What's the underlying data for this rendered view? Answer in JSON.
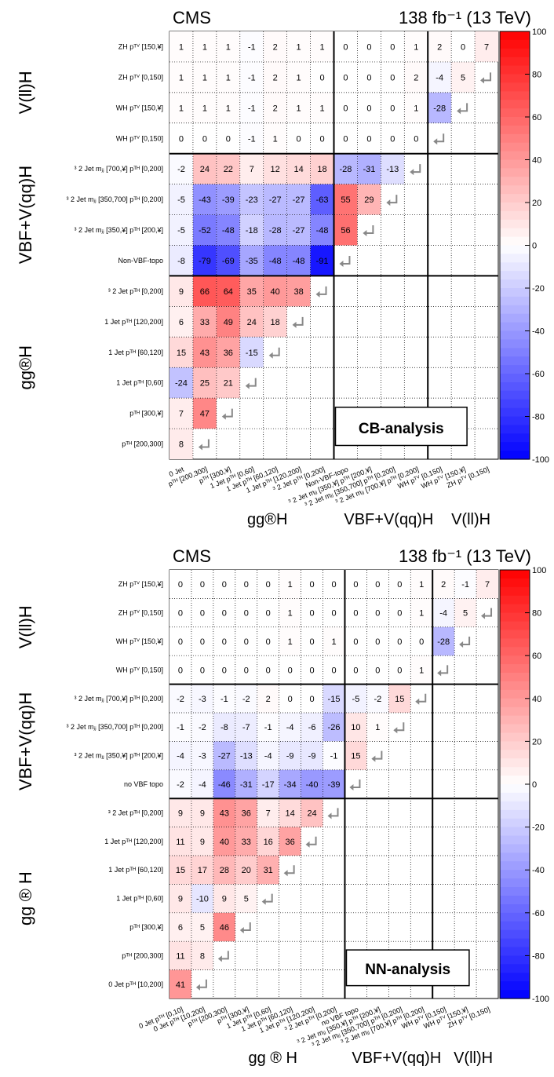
{
  "colorbar": {
    "ticks": [
      "100",
      "80",
      "60",
      "40",
      "20",
      "0",
      "-20",
      "-40",
      "-60",
      "-80",
      "-100"
    ],
    "max_color": "#ff0000",
    "mid_color": "#ffffff",
    "min_color": "#0000ff"
  },
  "chart_data": [
    {
      "type": "heatmap",
      "title_left": "CMS",
      "title_right": "138 fb⁻¹ (13 TeV)",
      "box_label": "CB-analysis",
      "x_labels": [
        "0 Jet",
        "pᵀᴴ [200,300]",
        "pᵀᴴ [300,¥]",
        "1 Jet pᵀᴴ [0,60]",
        "1 Jet pᵀᴴ [60,120]",
        "1 Jet pᵀᴴ [120,200]",
        "³ 2 Jet pᵀᴴ [0,200]",
        "Non-VBF-topo",
        "³ 2 Jet mⱼⱼ [350,¥] pᵀᴴ [200,¥]",
        "³ 2 Jet mⱼⱼ [350,700] pᵀᴴ [0,200]",
        "³ 2 Jet mⱼⱼ [700,¥] pᵀᴴ [0,200]",
        "WH pᵀⱽ [0,150]",
        "WH pᵀⱽ [150,¥]",
        "ZH pᵀⱽ [0,150]"
      ],
      "y_labels": [
        "ZH pᵀⱽ [150,¥]",
        "ZH pᵀⱽ [0,150]",
        "WH pᵀⱽ [150,¥]",
        "WH pᵀⱽ [0,150]",
        "³ 2 Jet mⱼⱼ [700,¥] pᵀᴴ [0,200]",
        "³ 2 Jet mⱼⱼ [350,700] pᵀᴴ [0,200]",
        "³ 2 Jet mⱼⱼ [350,¥] pᵀᴴ [200,¥]",
        "Non-VBF-topo",
        "³ 2 Jet pᵀᴴ [0,200]",
        "1 Jet pᵀᴴ [120,200]",
        "1 Jet pᵀᴴ [60,120]",
        "1 Jet pᵀᴴ [0,60]",
        "pᵀᴴ [300,¥]",
        "pᵀᴴ [200,300]"
      ],
      "y_groups": [
        "V(ll)H",
        "VBF+V(qq)H",
        "gg®H"
      ],
      "x_groups": [
        "gg®H",
        "VBF+V(qq)H",
        "V(ll)H"
      ],
      "values": [
        [
          1,
          1,
          1,
          -1,
          2,
          1,
          1,
          0,
          0,
          0,
          1,
          2,
          0,
          7
        ],
        [
          1,
          1,
          1,
          -1,
          2,
          1,
          0,
          0,
          0,
          0,
          2,
          -4,
          5,
          null
        ],
        [
          1,
          1,
          1,
          -1,
          2,
          1,
          1,
          0,
          0,
          0,
          1,
          -28,
          null,
          null
        ],
        [
          0,
          0,
          0,
          -1,
          1,
          0,
          0,
          0,
          0,
          0,
          0,
          null,
          null,
          null
        ],
        [
          -2,
          24,
          22,
          7,
          12,
          14,
          18,
          -28,
          -31,
          -13,
          null,
          null,
          null,
          null
        ],
        [
          -5,
          -43,
          -39,
          -23,
          -27,
          -27,
          -63,
          55,
          29,
          null,
          null,
          null,
          null,
          null
        ],
        [
          -5,
          -52,
          -48,
          -18,
          -28,
          -27,
          -48,
          56,
          null,
          null,
          null,
          null,
          null,
          null
        ],
        [
          -8,
          -79,
          -69,
          -35,
          -48,
          -48,
          -91,
          null,
          null,
          null,
          null,
          null,
          null,
          null
        ],
        [
          9,
          66,
          64,
          35,
          40,
          38,
          null,
          null,
          null,
          null,
          null,
          null,
          null,
          null
        ],
        [
          6,
          33,
          49,
          24,
          18,
          null,
          null,
          null,
          null,
          null,
          null,
          null,
          null,
          null
        ],
        [
          15,
          43,
          36,
          -15,
          null,
          null,
          null,
          null,
          null,
          null,
          null,
          null,
          null,
          null
        ],
        [
          -24,
          25,
          21,
          null,
          null,
          null,
          null,
          null,
          null,
          null,
          null,
          null,
          null,
          null
        ],
        [
          7,
          47,
          null,
          null,
          null,
          null,
          null,
          null,
          null,
          null,
          null,
          null,
          null,
          null
        ],
        [
          8,
          null,
          null,
          null,
          null,
          null,
          null,
          null,
          null,
          null,
          null,
          null,
          null,
          null
        ]
      ],
      "zlim": [
        -100,
        100
      ]
    },
    {
      "type": "heatmap",
      "title_left": "CMS",
      "title_right": "138 fb⁻¹ (13 TeV)",
      "box_label": "NN-analysis",
      "x_labels": [
        "0 Jet pᵀᴴ [0,10]",
        "0 Jet pᵀᴴ [10,200]",
        "pᵀᴴ [200,300]",
        "pᵀᴴ [300,¥]",
        "1 Jet pᵀᴴ [0,60]",
        "1 Jet pᵀᴴ [60,120]",
        "1 Jet pᵀᴴ [120,200]",
        "³ 2 Jet pᵀᴴ [0,200]",
        "no VBF topo",
        "³ 2 Jet mⱼⱼ [350,¥] pᵀᴴ [200,¥]",
        "³ 2 Jet mⱼⱼ [350,700] pᵀᴴ [0,200]",
        "³ 2 Jet mⱼⱼ [700,¥] pᵀᴴ [0,200]",
        "WH pᵀⱽ [0,150]",
        "WH pᵀⱽ [150,¥]",
        "ZH pᵀⱽ [0,150]"
      ],
      "y_labels": [
        "ZH pᵀⱽ [150,¥]",
        "ZH pᵀⱽ [0,150]",
        "WH pᵀⱽ [150,¥]",
        "WH pᵀⱽ [0,150]",
        "³ 2 Jet mⱼⱼ [700,¥] pᵀᴴ [0,200]",
        "³ 2 Jet mⱼⱼ [350,700] pᵀᴴ [0,200]",
        "³ 2 Jet mⱼⱼ [350,¥] pᵀᴴ [200,¥]",
        "no VBF topo",
        "³ 2 Jet pᵀᴴ [0,200]",
        "1 Jet pᵀᴴ [120,200]",
        "1 Jet pᵀᴴ [60,120]",
        "1 Jet pᵀᴴ [0,60]",
        "pᵀᴴ [300,¥]",
        "pᵀᴴ [200,300]",
        "0 Jet pᵀᴴ [10,200]"
      ],
      "y_groups": [
        "V(ll)H",
        "VBF+V(qq)H",
        "gg ® H"
      ],
      "x_groups": [
        "gg ® H",
        "VBF+V(qq)H",
        "V(ll)H"
      ],
      "values": [
        [
          0,
          0,
          0,
          0,
          0,
          1,
          0,
          0,
          0,
          0,
          0,
          1,
          2,
          -1,
          7
        ],
        [
          0,
          0,
          0,
          0,
          0,
          1,
          0,
          0,
          0,
          0,
          0,
          1,
          -4,
          5,
          null
        ],
        [
          0,
          0,
          0,
          0,
          0,
          1,
          0,
          1,
          0,
          0,
          0,
          0,
          -28,
          null,
          null
        ],
        [
          0,
          0,
          0,
          0,
          0,
          0,
          0,
          0,
          0,
          0,
          0,
          1,
          null,
          null,
          null
        ],
        [
          -2,
          -3,
          -1,
          -2,
          2,
          0,
          0,
          -15,
          -5,
          -2,
          15,
          null,
          null,
          null,
          null
        ],
        [
          -1,
          -2,
          -8,
          -7,
          -1,
          -4,
          -6,
          -26,
          10,
          1,
          null,
          null,
          null,
          null,
          null
        ],
        [
          -4,
          -3,
          -27,
          -13,
          -4,
          -9,
          -9,
          -1,
          15,
          null,
          null,
          null,
          null,
          null,
          null
        ],
        [
          -2,
          -4,
          -46,
          -31,
          -17,
          -34,
          -40,
          -39,
          null,
          null,
          null,
          null,
          null,
          null,
          null
        ],
        [
          9,
          9,
          43,
          36,
          7,
          14,
          24,
          null,
          null,
          null,
          null,
          null,
          null,
          null,
          null
        ],
        [
          11,
          9,
          40,
          33,
          16,
          36,
          null,
          null,
          null,
          null,
          null,
          null,
          null,
          null,
          null
        ],
        [
          15,
          17,
          28,
          20,
          31,
          null,
          null,
          null,
          null,
          null,
          null,
          null,
          null,
          null,
          null
        ],
        [
          9,
          -10,
          9,
          5,
          null,
          null,
          null,
          null,
          null,
          null,
          null,
          null,
          null,
          null,
          null
        ],
        [
          6,
          5,
          46,
          null,
          null,
          null,
          null,
          null,
          null,
          null,
          null,
          null,
          null,
          null,
          null
        ],
        [
          11,
          8,
          null,
          null,
          null,
          null,
          null,
          null,
          null,
          null,
          null,
          null,
          null,
          null,
          null
        ],
        [
          41,
          null,
          null,
          null,
          null,
          null,
          null,
          null,
          null,
          null,
          null,
          null,
          null,
          null,
          null
        ]
      ],
      "zlim": [
        -100,
        100
      ]
    }
  ]
}
